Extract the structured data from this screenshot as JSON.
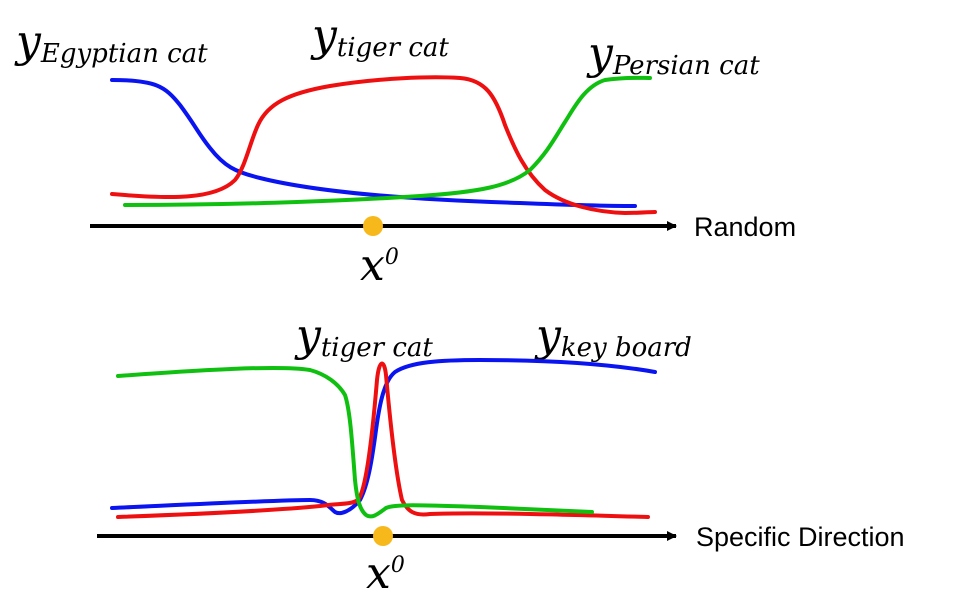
{
  "colors": {
    "blue": "#0a14f0",
    "red": "#ee1010",
    "green": "#10c010",
    "point": "#f7b81c",
    "axis": "#000000"
  },
  "top": {
    "labels": {
      "egyptian": {
        "base": "y",
        "sub": "Egyptian cat"
      },
      "tiger": {
        "base": "y",
        "sub": "tiger cat"
      },
      "persian": {
        "base": "y",
        "sub": "Persian cat"
      }
    },
    "axis_label": "Random",
    "point_label": {
      "base": "x",
      "sup": "0"
    }
  },
  "bottom": {
    "labels": {
      "tiger": {
        "base": "y",
        "sub": "tiger cat"
      },
      "keyboard": {
        "base": "y",
        "sub": "key board"
      }
    },
    "axis_label": "Specific Direction",
    "point_label": {
      "base": "x",
      "sup": "0"
    }
  }
}
